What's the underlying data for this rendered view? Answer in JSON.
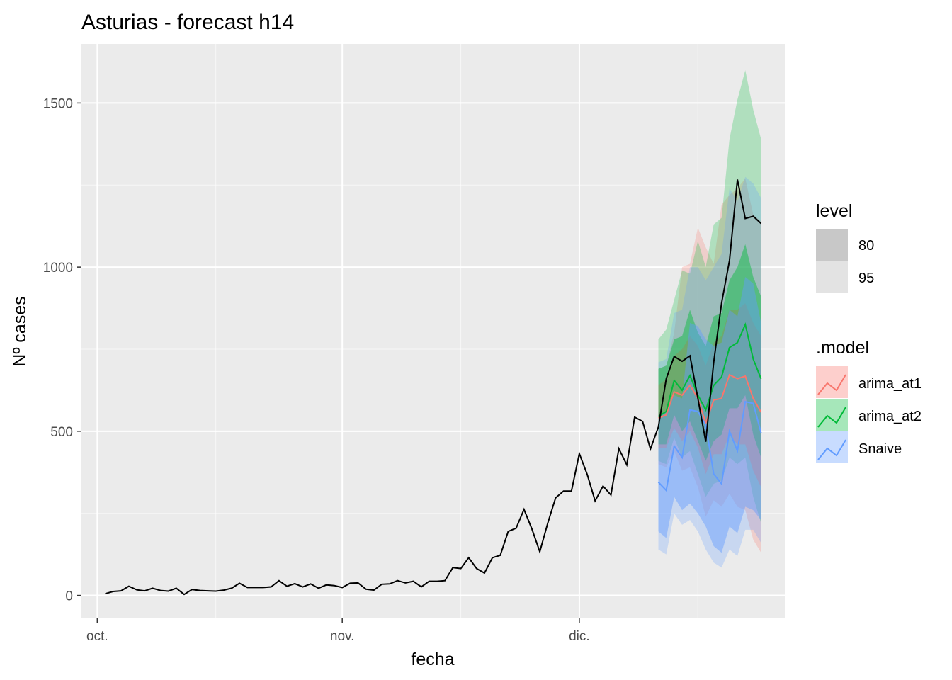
{
  "chart_data": {
    "type": "line",
    "title": "Asturias - forecast h14",
    "xlabel": "fecha",
    "ylabel": "Nº cases",
    "x_range": [
      "2020-09-29",
      "2020-12-27"
    ],
    "ylim": [
      -70,
      1680
    ],
    "grid": true,
    "x_ticks": [
      {
        "date": "2020-10-01",
        "label": "oct."
      },
      {
        "date": "2020-11-01",
        "label": "nov."
      },
      {
        "date": "2020-12-01",
        "label": "dic."
      }
    ],
    "x_minor_ticks": [
      "2020-10-16",
      "2020-11-16",
      "2020-12-16"
    ],
    "y_ticks": [
      0,
      500,
      1000,
      1500
    ],
    "y_minor_ticks": [
      250,
      750,
      1250
    ],
    "actual": {
      "start_date": "2020-10-02",
      "values": [
        5,
        12,
        14,
        28,
        17,
        14,
        22,
        15,
        13,
        22,
        3,
        18,
        15,
        14,
        13,
        16,
        22,
        37,
        24,
        24,
        24,
        26,
        45,
        28,
        36,
        26,
        35,
        22,
        32,
        30,
        24,
        37,
        38,
        19,
        16,
        34,
        35,
        45,
        38,
        43,
        26,
        43,
        43,
        45,
        85,
        82,
        115,
        82,
        68,
        115,
        122,
        195,
        205,
        262,
        202,
        133,
        220,
        297,
        318,
        318,
        432,
        368,
        288,
        333,
        306,
        447,
        398,
        543,
        530,
        446,
        513,
        660,
        728,
        713,
        730,
        600,
        468,
        710,
        890,
        1020,
        1267,
        1148,
        1155,
        1133
      ]
    },
    "forecast_start_date": "2020-12-11",
    "series": [
      {
        "name": "arima_at1",
        "color": "#F8766D",
        "values": [
          540,
          550,
          620,
          610,
          640,
          600,
          525,
          595,
          600,
          672,
          660,
          668,
          600,
          558
        ],
        "lo80": [
          450,
          450,
          510,
          470,
          500,
          450,
          370,
          430,
          430,
          490,
          460,
          460,
          380,
          330
        ],
        "hi80": [
          640,
          660,
          730,
          750,
          790,
          760,
          700,
          770,
          790,
          870,
          870,
          890,
          830,
          790
        ],
        "lo95": [
          400,
          390,
          440,
          380,
          390,
          330,
          240,
          290,
          270,
          310,
          270,
          260,
          170,
          130
        ],
        "hi95": [
          690,
          700,
          800,
          1000,
          1010,
          1120,
          1060,
          1010,
          1190,
          1220,
          1240,
          1270,
          1160,
          1140
        ]
      },
      {
        "name": "arima_at2",
        "color": "#00BA38",
        "values": [
          545,
          560,
          655,
          625,
          670,
          610,
          565,
          640,
          665,
          755,
          770,
          825,
          720,
          660
        ],
        "lo80": [
          460,
          460,
          550,
          500,
          530,
          470,
          410,
          470,
          490,
          570,
          570,
          610,
          490,
          420
        ],
        "hi80": [
          690,
          700,
          780,
          790,
          870,
          800,
          760,
          850,
          860,
          960,
          1000,
          1070,
          970,
          910
        ],
        "lo95": [
          410,
          400,
          480,
          420,
          440,
          370,
          300,
          340,
          350,
          420,
          400,
          420,
          300,
          220
        ],
        "hi95": [
          780,
          810,
          900,
          990,
          980,
          1080,
          1000,
          1130,
          1150,
          1390,
          1510,
          1600,
          1480,
          1390
        ]
      },
      {
        "name": "Snaive",
        "color": "#619CFF",
        "values": [
          345,
          320,
          455,
          420,
          565,
          560,
          520,
          370,
          340,
          500,
          440,
          590,
          585,
          495
        ],
        "lo80": [
          195,
          175,
          300,
          260,
          280,
          250,
          210,
          150,
          130,
          210,
          190,
          270,
          260,
          230
        ],
        "hi80": [
          540,
          560,
          610,
          600,
          830,
          820,
          780,
          760,
          770,
          870,
          850,
          970,
          950,
          830
        ],
        "lo95": [
          140,
          125,
          250,
          215,
          230,
          195,
          140,
          100,
          85,
          140,
          120,
          200,
          200,
          160
        ],
        "hi95": [
          710,
          720,
          860,
          870,
          1000,
          1000,
          960,
          1000,
          1040,
          1240,
          1200,
          1275,
          1255,
          1210
        ]
      }
    ],
    "actual_color": "#000000",
    "legend": {
      "placement": "right",
      "level_title": "level",
      "levels": [
        {
          "label": "80",
          "color": "#c8c8c8"
        },
        {
          "label": "95",
          "color": "#e3e3e3"
        }
      ],
      "model_title": ".model",
      "models": [
        "arima_at1",
        "arima_at2",
        "Snaive"
      ]
    },
    "style": {
      "panel_background": "#ebebeb",
      "grid_major": "#ffffff",
      "band80_opacity": 0.45,
      "band95_opacity": 0.25
    }
  }
}
